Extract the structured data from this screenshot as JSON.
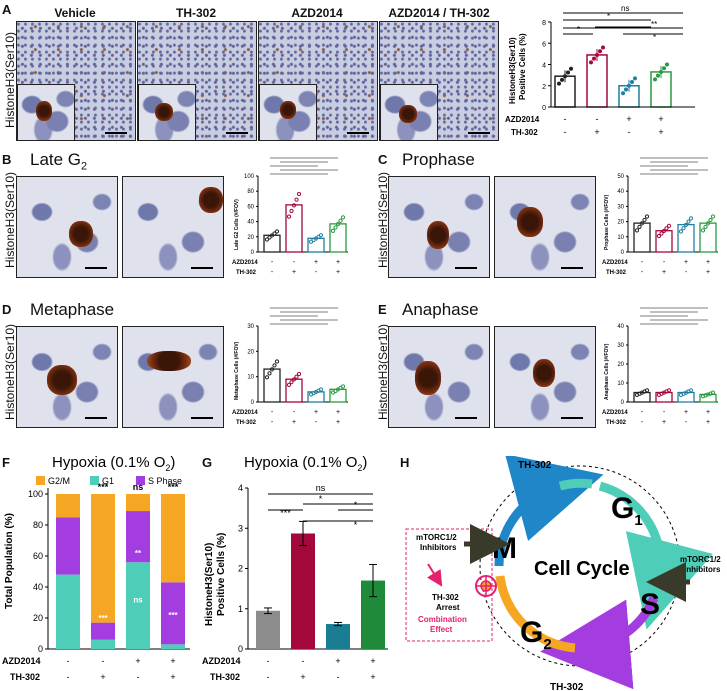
{
  "panelA": {
    "label": "A",
    "conditions": [
      "Vehicle",
      "TH-302",
      "AZD2014",
      "AZD2014 / TH-302"
    ],
    "ylabel": "HistoneH3(Ser10)",
    "chart": {
      "ylabel": "HistoneH3(Ser10)\nPositive Cells (%)",
      "ticks": [
        "0",
        "2",
        "4",
        "6",
        "8"
      ],
      "sig": [
        "ns",
        "*",
        "*",
        "**",
        "*"
      ]
    }
  },
  "panelB": {
    "label": "B",
    "title": "Late G",
    "sub": "2",
    "chart_ylabel": "Late G2 Cells (#/FOV)",
    "ticks": [
      "0",
      "20",
      "40",
      "60",
      "80",
      "100"
    ]
  },
  "panelC": {
    "label": "C",
    "title": "Prophase",
    "chart_ylabel": "Prophase Cells (#/FOV)",
    "ticks": [
      "0",
      "10",
      "20",
      "30",
      "40",
      "50"
    ]
  },
  "panelD": {
    "label": "D",
    "title": "Metaphase",
    "chart_ylabel": "Metaphase Cells (#/FOV)",
    "ticks": [
      "0",
      "10",
      "20",
      "30"
    ]
  },
  "panelE": {
    "label": "E",
    "title": "Anaphase",
    "chart_ylabel": "Anaphase Cells (#/FOV)",
    "ticks": [
      "0",
      "10",
      "20",
      "30",
      "40"
    ]
  },
  "row_labels": {
    "azd": "AZD2014",
    "th": "TH-302"
  },
  "signs": {
    "minus": "-",
    "plus": "+"
  },
  "panelF": {
    "label": "F",
    "title": "Hypoxia (0.1% O",
    "title_sub": "2",
    "title_end": ")",
    "ylabel": "Total Population (%)",
    "ticks": [
      "0",
      "20",
      "40",
      "60",
      "80",
      "100"
    ],
    "legend": [
      {
        "name": "G2/M",
        "color": "#f5a623"
      },
      {
        "name": "G1",
        "color": "#4ecdb8"
      },
      {
        "name": "S Phase",
        "color": "#a33de0"
      }
    ],
    "top_sig": [
      "***",
      "ns",
      "***"
    ],
    "inner_sig": [
      "***",
      "**",
      "ns",
      "***"
    ]
  },
  "panelG": {
    "label": "G",
    "title": "Hypoxia (0.1% O",
    "title_sub": "2",
    "title_end": ")",
    "ylabel": "HistoneH3(Ser10)\nPositive Cells (%)",
    "ticks": [
      "0",
      "1",
      "2",
      "3",
      "4"
    ],
    "sig": [
      "ns",
      "*",
      "***",
      "*",
      "*"
    ]
  },
  "panelH": {
    "label": "H",
    "center": "Cell Cycle",
    "phases": {
      "g1": "G",
      "g1_sub": "1",
      "s": "S",
      "g2": "G",
      "g2_sub": "2",
      "m": "M"
    },
    "th_top": "TH-302",
    "th_bottom": "TH-302",
    "inhibitor_right": "mTORC1/2\nInhibitors",
    "inhibitor_left": "mTORC1/2\nInhibitors",
    "arrest": "TH-302\nArrest",
    "combo": "Combination\nEffect"
  },
  "chart_data": [
    {
      "type": "bar",
      "panel": "A",
      "categories": [
        "Veh",
        "TH-302",
        "AZD2014",
        "AZD2014/TH-302"
      ],
      "values": [
        2.9,
        4.9,
        2.0,
        3.3
      ],
      "ylim": [
        0,
        8
      ],
      "colors": [
        "#222222",
        "#a3083a",
        "#1f7fa0",
        "#2a9a40"
      ]
    },
    {
      "type": "bar",
      "panel": "B",
      "categories": [
        "Veh",
        "TH-302",
        "AZD2014",
        "AZD2014/TH-302"
      ],
      "values": [
        22,
        62,
        18,
        37
      ],
      "ylim": [
        0,
        100
      ]
    },
    {
      "type": "bar",
      "panel": "C",
      "categories": [
        "Veh",
        "TH-302",
        "AZD2014",
        "AZD2014/TH-302"
      ],
      "values": [
        19,
        14,
        18,
        19
      ],
      "ylim": [
        0,
        50
      ]
    },
    {
      "type": "bar",
      "panel": "D",
      "categories": [
        "Veh",
        "TH-302",
        "AZD2014",
        "AZD2014/TH-302"
      ],
      "values": [
        13,
        9,
        4,
        5
      ],
      "ylim": [
        0,
        30
      ]
    },
    {
      "type": "bar",
      "panel": "E",
      "categories": [
        "Veh",
        "TH-302",
        "AZD2014",
        "AZD2014/TH-302"
      ],
      "values": [
        5,
        5,
        5,
        4
      ],
      "ylim": [
        0,
        40
      ]
    },
    {
      "type": "bar",
      "panel": "F",
      "stacked": true,
      "categories": [
        "Veh",
        "TH-302",
        "AZD2014",
        "AZD2014/TH-302"
      ],
      "series": [
        {
          "name": "G1",
          "values": [
            48,
            6,
            56,
            3
          ]
        },
        {
          "name": "S Phase",
          "values": [
            37,
            11,
            33,
            40
          ]
        },
        {
          "name": "G2/M",
          "values": [
            15,
            83,
            11,
            57
          ]
        }
      ],
      "ylim": [
        0,
        100
      ]
    },
    {
      "type": "bar",
      "panel": "G",
      "categories": [
        "Veh",
        "TH-302",
        "AZD2014",
        "AZD2014/TH-302"
      ],
      "values": [
        0.95,
        2.87,
        0.62,
        1.7
      ],
      "ylim": [
        0,
        4
      ],
      "colors": [
        "#8c8c8c",
        "#a3083a",
        "#1a7d93",
        "#1e8a3a"
      ]
    }
  ]
}
